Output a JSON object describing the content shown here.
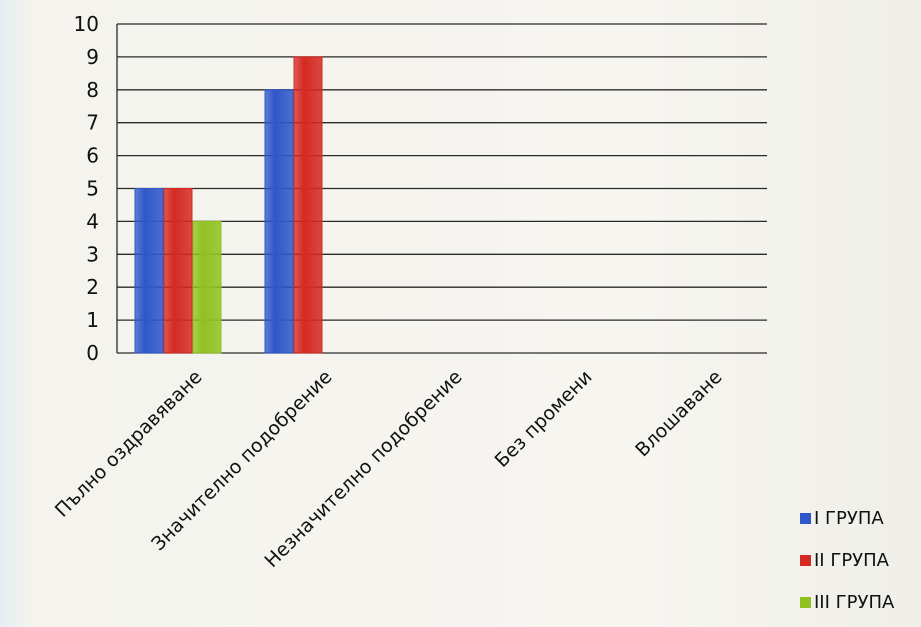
{
  "chart_data": {
    "type": "bar",
    "categories": [
      "Пълно оздравяване",
      "Значително подобрение",
      "Незначително подобрение",
      "Без промени",
      "Влошаване"
    ],
    "series": [
      {
        "name": "I ГРУПА",
        "color": "#2f57c9",
        "values": [
          5,
          8,
          0,
          0,
          0
        ]
      },
      {
        "name": "II ГРУПА",
        "color": "#d42a22",
        "values": [
          5,
          9,
          0,
          0,
          0
        ]
      },
      {
        "name": "III ГРУПА",
        "color": "#8fc21f",
        "values": [
          4,
          0,
          0,
          0,
          0
        ]
      }
    ],
    "ylim": [
      0,
      10
    ],
    "yticks": [
      "0",
      "1",
      "2",
      "3",
      "4",
      "5",
      "6",
      "7",
      "8",
      "9",
      "10"
    ],
    "grid": true,
    "legend_position": "bottom-right",
    "xlabel": "",
    "ylabel": "",
    "title": ""
  }
}
